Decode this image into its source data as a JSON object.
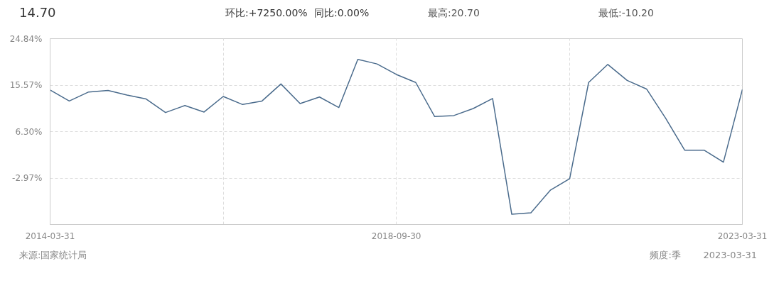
{
  "chart_data": {
    "type": "line",
    "x": [
      "2014-03-31",
      "2014-06-30",
      "2014-09-30",
      "2014-12-31",
      "2015-03-31",
      "2015-06-30",
      "2015-09-30",
      "2015-12-31",
      "2016-03-31",
      "2016-06-30",
      "2016-09-30",
      "2016-12-31",
      "2017-03-31",
      "2017-06-30",
      "2017-09-30",
      "2017-12-31",
      "2018-03-31",
      "2018-06-30",
      "2018-09-30",
      "2018-12-31",
      "2019-03-31",
      "2019-06-30",
      "2019-09-30",
      "2019-12-31",
      "2020-03-31",
      "2020-06-30",
      "2020-09-30",
      "2020-12-31",
      "2021-03-31",
      "2021-06-30",
      "2021-09-30",
      "2021-12-31",
      "2022-03-31",
      "2022-06-30",
      "2022-09-30",
      "2022-12-31",
      "2023-03-31"
    ],
    "series": [
      {
        "color": "#4a6b8c",
        "values": [
          14.6,
          12.4,
          14.2,
          14.5,
          13.6,
          12.8,
          10.1,
          11.5,
          10.2,
          13.3,
          11.7,
          12.4,
          15.8,
          11.9,
          13.2,
          11.1,
          20.7,
          19.8,
          17.7,
          16.1,
          9.3,
          9.5,
          10.9,
          12.9,
          -10.2,
          -9.9,
          -5.4,
          -3.1,
          16.1,
          19.7,
          16.5,
          14.8,
          9.0,
          2.6,
          2.6,
          0.2,
          14.7
        ]
      }
    ],
    "ylim": [
      -12.24,
      24.84
    ],
    "yticks": [
      {
        "value": 24.84,
        "label": "24.84%"
      },
      {
        "value": 15.57,
        "label": "15.57%"
      },
      {
        "value": 6.3,
        "label": "6.30%"
      },
      {
        "value": -2.97,
        "label": "-2.97%"
      }
    ],
    "xlim": [
      "2014-03-31",
      "2023-03-31"
    ],
    "xticks": [
      {
        "value": "2014-03-31",
        "label": "2014-03-31"
      },
      {
        "value": "2016-06-30",
        "label": null
      },
      {
        "value": "2018-09-30",
        "label": "2018-09-30"
      },
      {
        "value": "2020-12-31",
        "label": null
      },
      {
        "value": "2023-03-31",
        "label": "2023-03-31"
      }
    ],
    "grid": true,
    "marker": "none",
    "line_style": "solid",
    "annotations": [
      "14.70",
      "环比:+7250.00%",
      "同比:0.00%",
      "最高:20.70",
      "最低:-10.20",
      "来源:国家统计局",
      "频度:季",
      "2023-03-31"
    ]
  }
}
